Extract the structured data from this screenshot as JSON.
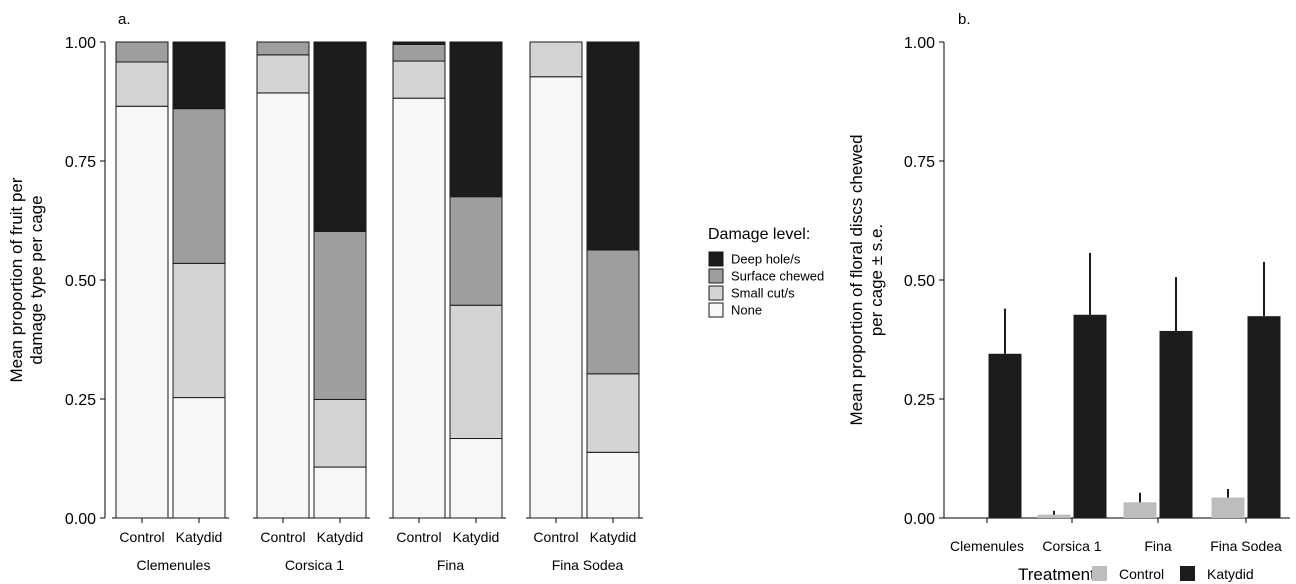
{
  "chart_data": [
    {
      "panel_label": "a.",
      "type": "bar",
      "stacked": true,
      "ylabel": "Mean proportion of fruit per\ndamage type per cage",
      "xlabel": "",
      "ylim": [
        0,
        1
      ],
      "yticks": [
        "0.00",
        "0.25",
        "0.50",
        "0.75",
        "1.00"
      ],
      "facets": [
        "Clemenules",
        "Corsica 1",
        "Fina",
        "Fina Sodea"
      ],
      "categories": [
        "Control",
        "Katydid"
      ],
      "legend": {
        "title": "Damage level:",
        "position": "right",
        "entries": [
          "Deep hole/s",
          "Surface chewed",
          "Small cut/s",
          "None"
        ]
      },
      "series": [
        {
          "name": "None",
          "color": "#f7f7f7",
          "values": {
            "Clemenules": [
              0.865,
              0.253
            ],
            "Corsica 1": [
              0.893,
              0.107
            ],
            "Fina": [
              0.882,
              0.167
            ],
            "Fina Sodea": [
              0.927,
              0.138
            ]
          }
        },
        {
          "name": "Small cut/s",
          "color": "#d4d4d4",
          "values": {
            "Clemenules": [
              0.093,
              0.282
            ],
            "Corsica 1": [
              0.08,
              0.142
            ],
            "Fina": [
              0.078,
              0.28
            ],
            "Fina Sodea": [
              0.073,
              0.165
            ]
          }
        },
        {
          "name": "Surface chewed",
          "color": "#9e9e9e",
          "values": {
            "Clemenules": [
              0.042,
              0.325
            ],
            "Corsica 1": [
              0.027,
              0.353
            ],
            "Fina": [
              0.035,
              0.228
            ],
            "Fina Sodea": [
              0.0,
              0.26
            ]
          }
        },
        {
          "name": "Deep hole/s",
          "color": "#1c1c1c",
          "values": {
            "Clemenules": [
              0.0,
              0.14
            ],
            "Corsica 1": [
              0.0,
              0.398
            ],
            "Fina": [
              0.005,
              0.325
            ],
            "Fina Sodea": [
              0.0,
              0.437
            ]
          }
        }
      ]
    },
    {
      "panel_label": "b.",
      "type": "bar",
      "ylabel": "Mean proportion of floral discs chewed\nper cage ± s.e.",
      "xlabel": "",
      "ylim": [
        0,
        1
      ],
      "yticks": [
        "0.00",
        "0.25",
        "0.50",
        "0.75",
        "1.00"
      ],
      "categories": [
        "Clemenules",
        "Corsica 1",
        "Fina",
        "Fina Sodea"
      ],
      "legend": {
        "title": "Treatment:",
        "position": "bottom",
        "entries": [
          "Control",
          "Katydid"
        ]
      },
      "series": [
        {
          "name": "Control",
          "color": "#bdbdbd",
          "values": [
            0.0,
            0.007,
            0.033,
            0.043
          ],
          "se": [
            0.0,
            0.008,
            0.02,
            0.018
          ]
        },
        {
          "name": "Katydid",
          "color": "#1c1c1c",
          "values": [
            0.345,
            0.427,
            0.393,
            0.424
          ],
          "se": [
            0.095,
            0.13,
            0.113,
            0.114
          ]
        }
      ]
    }
  ]
}
